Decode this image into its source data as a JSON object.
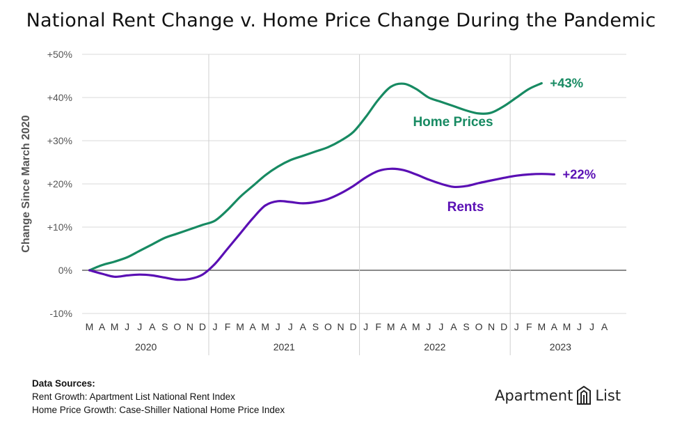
{
  "chart_data": {
    "type": "line",
    "title": "National Rent Change v. Home Price Change During the Pandemic",
    "ylabel": "Change Since March 2020",
    "xlabel": "",
    "ylim": [
      -10,
      50
    ],
    "yticks": [
      -10,
      0,
      10,
      20,
      30,
      40,
      50
    ],
    "ytick_labels": [
      "-10%",
      "0%",
      "+10%",
      "+20%",
      "+30%",
      "+40%",
      "+50%"
    ],
    "grid": true,
    "month_labels": [
      "M",
      "A",
      "M",
      "J",
      "J",
      "A",
      "S",
      "O",
      "N",
      "D",
      "J",
      "F",
      "M",
      "A",
      "M",
      "J",
      "J",
      "A",
      "S",
      "O",
      "N",
      "D",
      "J",
      "F",
      "M",
      "A",
      "M",
      "J",
      "J",
      "A",
      "S",
      "O",
      "N",
      "D",
      "J",
      "F",
      "M",
      "A",
      "M",
      "J",
      "J",
      "A"
    ],
    "years": [
      {
        "label": "2020",
        "start": 0,
        "end": 9
      },
      {
        "label": "2021",
        "start": 10,
        "end": 21
      },
      {
        "label": "2022",
        "start": 22,
        "end": 33
      },
      {
        "label": "2023",
        "start": 34,
        "end": 41
      }
    ],
    "series": [
      {
        "name": "Home Prices",
        "color": "#178a62",
        "end_label": "+43%",
        "values": [
          0,
          1.2,
          2,
          3,
          4.5,
          6,
          7.5,
          8.5,
          9.5,
          10.5,
          11.5,
          14,
          17,
          19.5,
          22,
          24,
          25.5,
          26.5,
          27.5,
          28.5,
          30,
          32,
          35.5,
          39.5,
          42.5,
          43.2,
          42,
          40,
          39,
          38,
          37,
          36.3,
          36.5,
          38,
          40,
          42,
          43.3
        ]
      },
      {
        "name": "Rents",
        "color": "#5a0fb4",
        "end_label": "+22%",
        "values": [
          0,
          -0.8,
          -1.5,
          -1.2,
          -1,
          -1.2,
          -1.7,
          -2.2,
          -2,
          -1,
          1.5,
          5,
          8.5,
          12,
          15,
          16,
          15.8,
          15.5,
          15.8,
          16.5,
          17.8,
          19.5,
          21.5,
          23,
          23.5,
          23.2,
          22.2,
          21,
          20,
          19.3,
          19.5,
          20.2,
          20.8,
          21.4,
          21.9,
          22.2,
          22.3,
          22.2
        ]
      }
    ]
  },
  "sources": {
    "heading": "Data Sources:",
    "lines": [
      "Rent Growth: Apartment List National Rent Index",
      "Home Price Growth: Case-Shiller National Home Price Index"
    ]
  },
  "brand": {
    "left": "Apartment",
    "right": "List",
    "logo_icon": "apartment-list-logo-icon"
  }
}
